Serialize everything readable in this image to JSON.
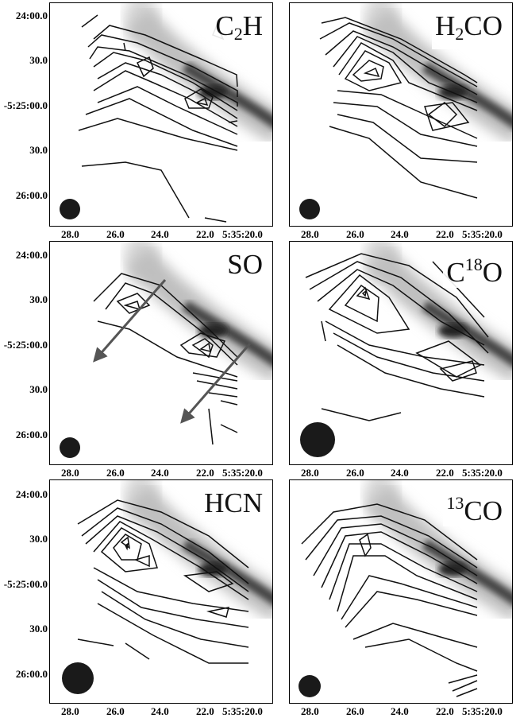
{
  "panels": [
    {
      "id": "c2h",
      "label_main": "C",
      "label_sub": "2",
      "label_sup": "",
      "label_rest": "H",
      "beam": "small"
    },
    {
      "id": "h2co",
      "label_main": "H",
      "label_sub": "2",
      "label_sup": "",
      "label_rest": "CO",
      "beam": "small"
    },
    {
      "id": "so",
      "label_main": "SO",
      "label_sub": "",
      "label_sup": "",
      "label_rest": "",
      "beam": "small"
    },
    {
      "id": "c18o",
      "label_main": "C",
      "label_sub": "",
      "label_sup": "18",
      "label_rest": "O",
      "beam": "large"
    },
    {
      "id": "hcn",
      "label_main": "HCN",
      "label_sub": "",
      "label_sup": "",
      "label_rest": "",
      "beam": "large"
    },
    {
      "id": "13co",
      "label_main": "",
      "label_sub": "",
      "label_sup": "13",
      "label_rest": "CO",
      "beam": "small"
    }
  ],
  "y_ticks": [
    "24:00.0",
    "30.0",
    "-5:25:00.0",
    "30.0",
    "26:00.0"
  ],
  "x_ticks": [
    "28.0",
    "26.0",
    "24.0",
    "22.0",
    "5:35:20.0"
  ],
  "colors": {
    "contour": "#111111",
    "arrow": "#555555",
    "beam": "#1a1a1a"
  }
}
